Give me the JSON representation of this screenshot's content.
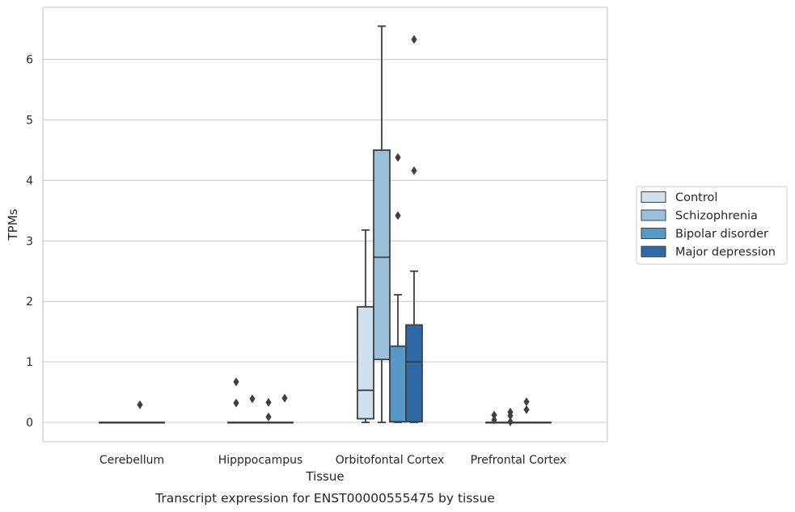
{
  "chart_data": {
    "type": "box",
    "title": "Transcript expression for ENST00000555475 by tissue",
    "xlabel": "Tissue",
    "ylabel": "TPMs",
    "ylim": [
      -0.32,
      6.9
    ],
    "yticks": [
      0,
      1,
      2,
      3,
      4,
      5,
      6
    ],
    "grid": "horizontal",
    "legend_position": "right",
    "categories": [
      "Cerebellum",
      "Hipppocampus",
      "Orbitofontal Cortex",
      "Prefrontal Cortex"
    ],
    "series": [
      {
        "name": "Control",
        "color": "#cfe1f1",
        "boxes": [
          {
            "min": 0,
            "q1": 0,
            "median": 0,
            "q3": 0,
            "max": 0,
            "outliers": []
          },
          {
            "min": 0,
            "q1": 0,
            "median": 0,
            "q3": 0,
            "max": 0,
            "outliers": [
              0.67,
              0.32
            ]
          },
          {
            "min": 0,
            "q1": 0.06,
            "median": 0.53,
            "q3": 1.91,
            "max": 3.18,
            "outliers": []
          },
          {
            "min": 0,
            "q1": 0,
            "median": 0,
            "q3": 0,
            "max": 0,
            "outliers": [
              0.12,
              0.04
            ]
          }
        ]
      },
      {
        "name": "Schizophrenia",
        "color": "#9ac1dc",
        "boxes": [
          {
            "min": 0,
            "q1": 0,
            "median": 0,
            "q3": 0,
            "max": 0,
            "outliers": []
          },
          {
            "min": 0,
            "q1": 0,
            "median": 0,
            "q3": 0,
            "max": 0,
            "outliers": [
              0.39
            ]
          },
          {
            "min": 0,
            "q1": 1.04,
            "median": 2.73,
            "q3": 4.5,
            "max": 6.55,
            "outliers": []
          },
          {
            "min": 0,
            "q1": 0,
            "median": 0,
            "q3": 0,
            "max": 0,
            "outliers": [
              0.17,
              0.11,
              0.01
            ]
          }
        ]
      },
      {
        "name": "Bipolar disorder",
        "color": "#5698c6",
        "boxes": [
          {
            "min": 0,
            "q1": 0,
            "median": 0,
            "q3": 0,
            "max": 0,
            "outliers": [
              0.29
            ]
          },
          {
            "min": 0,
            "q1": 0,
            "median": 0,
            "q3": 0,
            "max": 0,
            "outliers": [
              0.33,
              0.09
            ]
          },
          {
            "min": 0,
            "q1": 0.01,
            "median": 0.01,
            "q3": 1.26,
            "max": 2.11,
            "outliers": [
              4.38,
              3.42
            ]
          },
          {
            "min": 0,
            "q1": 0,
            "median": 0,
            "q3": 0,
            "max": 0,
            "outliers": [
              0.34,
              0.21
            ]
          }
        ]
      },
      {
        "name": "Major depression",
        "color": "#2e6ba6",
        "boxes": [
          {
            "min": 0,
            "q1": 0,
            "median": 0,
            "q3": 0,
            "max": 0,
            "outliers": []
          },
          {
            "min": 0,
            "q1": 0,
            "median": 0,
            "q3": 0,
            "max": 0,
            "outliers": [
              0.4
            ]
          },
          {
            "min": 0,
            "q1": 0.01,
            "median": 1.0,
            "q3": 1.61,
            "max": 2.5,
            "outliers": [
              6.33,
              4.16
            ]
          },
          {
            "min": 0,
            "q1": 0,
            "median": 0,
            "q3": 0,
            "max": 0,
            "outliers": []
          }
        ]
      }
    ]
  }
}
